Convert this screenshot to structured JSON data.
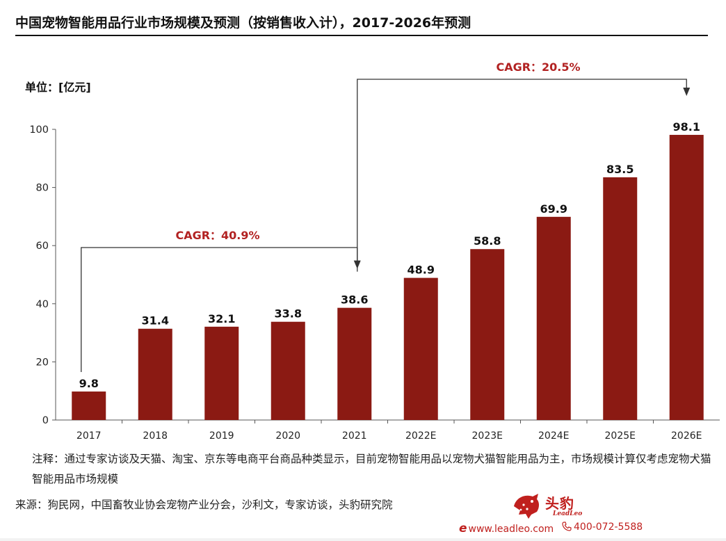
{
  "title": "中国宠物智能用品行业市场规模及预测（按销售收入计），2017-2026年预测",
  "note": "注释：通过专家访谈及天猫、淘宝、京东等电商平台商品种类显示，目前宠物智能用品以宠物犬猫智能用品为主，市场规模计算仅考虑宠物犬猫智能用品市场规模",
  "source": "来源：狗民网，中国畜牧业协会宠物产业分会，沙利文，专家访谈，头豹研究院",
  "brand": {
    "name_cn": "头豹",
    "name_en": "LeadLeo",
    "website": "www.leadleo.com",
    "phone": "400-072-5588",
    "color": "#c0201e"
  },
  "chart_data": {
    "type": "bar",
    "unit_label": "单位：[亿元]",
    "categories": [
      "2017",
      "2018",
      "2019",
      "2020",
      "2021",
      "2022E",
      "2023E",
      "2024E",
      "2025E",
      "2026E"
    ],
    "values": [
      9.8,
      31.4,
      32.1,
      33.8,
      38.6,
      48.9,
      58.8,
      69.9,
      83.5,
      98.1
    ],
    "value_labels": [
      "9.8",
      "31.4",
      "32.1",
      "33.8",
      "38.6",
      "48.9",
      "58.8",
      "69.9",
      "83.5",
      "98.1"
    ],
    "ylim": [
      0,
      100
    ],
    "yticks": [
      0,
      20,
      40,
      60,
      80,
      100
    ],
    "grid": false,
    "bar_color": "#8b1a13",
    "annotations": [
      {
        "text": "CAGR：40.9%",
        "from_category": "2017",
        "to_category": "2021",
        "color": "#b22222"
      },
      {
        "text": "CAGR：20.5%",
        "from_category": "2021",
        "to_category": "2026E",
        "color": "#b22222"
      }
    ]
  }
}
